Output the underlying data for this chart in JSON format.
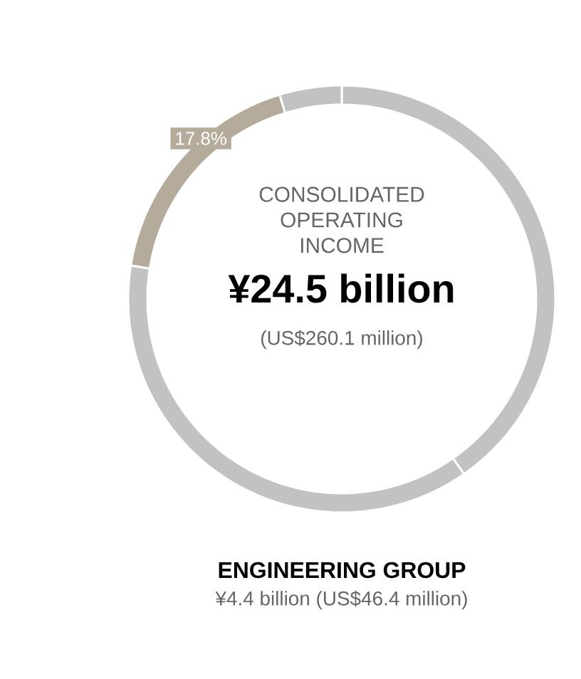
{
  "chart_data": {
    "type": "donut",
    "title": "ENGINEERING GROUP",
    "subtitle": "¥4.4 billion (US$46.4 million)",
    "annotations": [
      "CONSOLIDATED OPERATING INCOME",
      "¥24.5 billion",
      "(US$260.1 million)"
    ],
    "categories": [
      null,
      null,
      null,
      null
    ],
    "values": [
      40.3,
      37.2,
      17.8,
      4.7
    ],
    "colors": [
      "#c1c2c4",
      "#c1c2c4",
      "#b5ab9a",
      "#c1c2c4"
    ],
    "value_labels": [
      null,
      null,
      "17.8%",
      null
    ]
  }
}
